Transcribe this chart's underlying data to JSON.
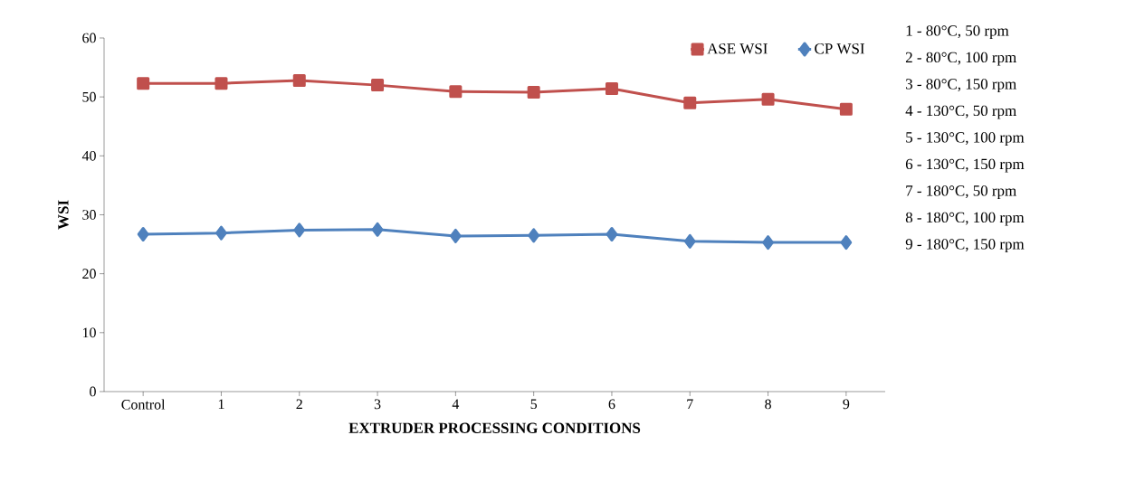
{
  "chart_data": {
    "type": "line",
    "xlabel": "EXTRUDER PROCESSING CONDITIONS",
    "ylabel": "WSI",
    "categories": [
      "Control",
      "1",
      "2",
      "3",
      "4",
      "5",
      "6",
      "7",
      "8",
      "9"
    ],
    "series": [
      {
        "name": "ASE WSI",
        "color": "#c0504d",
        "marker": "square",
        "values": [
          52.3,
          52.3,
          52.8,
          52.0,
          50.9,
          50.8,
          51.4,
          49.0,
          49.6,
          47.9
        ]
      },
      {
        "name": "CP WSI",
        "color": "#4f81bd",
        "marker": "diamond",
        "values": [
          26.7,
          26.9,
          27.4,
          27.5,
          26.4,
          26.5,
          26.7,
          25.5,
          25.3,
          25.3
        ]
      }
    ],
    "ylim": [
      0,
      60
    ],
    "yticks": [
      0,
      10,
      20,
      30,
      40,
      50,
      60
    ],
    "grid": false,
    "legend": "top right",
    "annotations": [
      "1 - 80°C, 50 rpm",
      "2 - 80°C, 100 rpm",
      "3 - 80°C, 150 rpm",
      "4 - 130°C, 50 rpm",
      "5 - 130°C, 100 rpm",
      "6 - 130°C, 150 rpm",
      "7 - 180°C, 50 rpm",
      "8 - 180°C, 100 rpm",
      "9 - 180°C, 150 rpm"
    ]
  }
}
